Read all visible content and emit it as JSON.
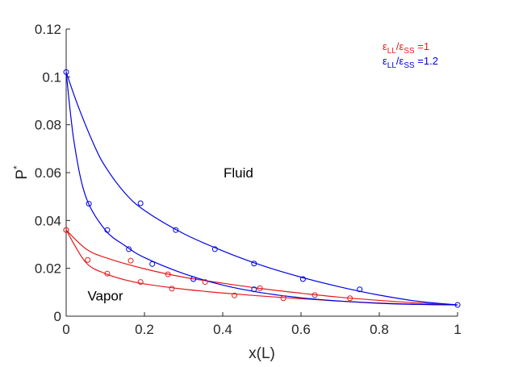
{
  "chart_data": {
    "type": "line",
    "title": "",
    "xlabel": "x(L)",
    "ylabel": "P*",
    "xlim": [
      0,
      1
    ],
    "ylim": [
      0,
      0.12
    ],
    "xticks": [
      "0",
      "0.2",
      "0.4",
      "0.6",
      "0.8",
      "1"
    ],
    "yticks": [
      "0",
      "0.02",
      "0.04",
      "0.06",
      "0.08",
      "0.1",
      "0.12"
    ],
    "grid": false,
    "legend_position": "top-right",
    "legend": [
      {
        "text": "εLL/εSS =1",
        "color": "#e41a1c"
      },
      {
        "text": "εLL/εSS =1.2",
        "color": "#0000e6"
      }
    ],
    "annotations": [
      {
        "text": "Fluid",
        "x": 0.44,
        "y": 0.058
      },
      {
        "text": "Vapor",
        "x": 0.1,
        "y": 0.0065
      }
    ],
    "series": [
      {
        "color": "#e41a1c",
        "kind": "bubble-curve",
        "curve": [
          [
            0,
            0.036
          ],
          [
            0.05,
            0.0225
          ],
          [
            0.1,
            0.0178
          ],
          [
            0.15,
            0.0152
          ],
          [
            0.2,
            0.0135
          ],
          [
            0.3,
            0.0113
          ],
          [
            0.4,
            0.0097
          ],
          [
            0.5,
            0.0084
          ],
          [
            0.6,
            0.0073
          ],
          [
            0.7,
            0.0063
          ],
          [
            0.8,
            0.0055
          ],
          [
            0.9,
            0.005
          ],
          [
            1,
            0.0047
          ]
        ],
        "points": [
          [
            0,
            0.036
          ],
          [
            0.105,
            0.0178
          ],
          [
            0.19,
            0.0143
          ],
          [
            0.27,
            0.0115
          ],
          [
            0.43,
            0.0087
          ],
          [
            0.555,
            0.0075
          ],
          [
            0.635,
            0.0088
          ],
          [
            0.725,
            0.0075
          ]
        ]
      },
      {
        "color": "#e41a1c",
        "kind": "dew-curve",
        "curve": [
          [
            0,
            0.036
          ],
          [
            0.05,
            0.0282
          ],
          [
            0.1,
            0.0245
          ],
          [
            0.2,
            0.0198
          ],
          [
            0.3,
            0.0163
          ],
          [
            0.4,
            0.0138
          ],
          [
            0.5,
            0.0115
          ],
          [
            0.6,
            0.0096
          ],
          [
            0.7,
            0.0079
          ],
          [
            0.8,
            0.0066
          ],
          [
            0.9,
            0.0055
          ],
          [
            1,
            0.0047
          ]
        ],
        "points": [
          [
            0,
            0.036
          ],
          [
            0.055,
            0.0235
          ],
          [
            0.165,
            0.0232
          ],
          [
            0.26,
            0.0175
          ],
          [
            0.355,
            0.0143
          ],
          [
            0.495,
            0.0117
          ]
        ]
      },
      {
        "color": "#0000e6",
        "kind": "bubble-curve",
        "curve": [
          [
            0,
            0.102
          ],
          [
            0.02,
            0.073
          ],
          [
            0.05,
            0.05
          ],
          [
            0.1,
            0.036
          ],
          [
            0.15,
            0.0295
          ],
          [
            0.2,
            0.0245
          ],
          [
            0.3,
            0.0178
          ],
          [
            0.4,
            0.013
          ],
          [
            0.5,
            0.0098
          ],
          [
            0.6,
            0.0077
          ],
          [
            0.7,
            0.0063
          ],
          [
            0.8,
            0.0054
          ],
          [
            0.9,
            0.0049
          ],
          [
            1,
            0.0047
          ]
        ],
        "points": [
          [
            0,
            0.102
          ],
          [
            0.058,
            0.047
          ],
          [
            0.105,
            0.036
          ],
          [
            0.16,
            0.028
          ],
          [
            0.22,
            0.0218
          ],
          [
            0.325,
            0.0155
          ],
          [
            0.48,
            0.0112
          ]
        ]
      },
      {
        "color": "#0000e6",
        "kind": "dew-curve",
        "curve": [
          [
            0,
            0.102
          ],
          [
            0.03,
            0.088
          ],
          [
            0.07,
            0.072
          ],
          [
            0.1,
            0.0625
          ],
          [
            0.15,
            0.0515
          ],
          [
            0.2,
            0.0442
          ],
          [
            0.3,
            0.0345
          ],
          [
            0.4,
            0.0273
          ],
          [
            0.5,
            0.0212
          ],
          [
            0.6,
            0.0163
          ],
          [
            0.7,
            0.0122
          ],
          [
            0.8,
            0.0088
          ],
          [
            0.9,
            0.0062
          ],
          [
            1,
            0.0047
          ]
        ],
        "points": [
          [
            0.19,
            0.0472
          ],
          [
            0.28,
            0.036
          ],
          [
            0.38,
            0.028
          ],
          [
            0.48,
            0.022
          ],
          [
            0.605,
            0.0155
          ],
          [
            0.75,
            0.0112
          ],
          [
            1,
            0.0047
          ]
        ]
      }
    ]
  }
}
